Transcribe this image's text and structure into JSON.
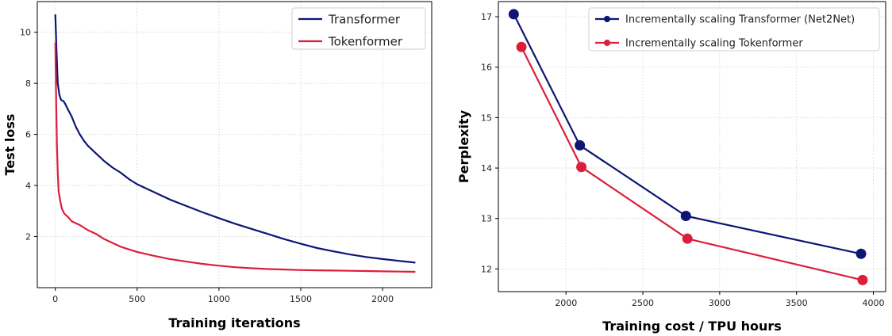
{
  "chart_data": [
    {
      "type": "line",
      "xlabel": "Training iterations",
      "ylabel": "Test loss",
      "xlim": [
        -110,
        2300
      ],
      "ylim": [
        0,
        11.2
      ],
      "xticks": [
        0,
        500,
        1000,
        1500,
        2000
      ],
      "yticks": [
        2,
        4,
        6,
        8,
        10
      ],
      "grid": true,
      "legend_position": "top-right",
      "series": [
        {
          "name": "Transformer",
          "color": "#0d1575",
          "points": [
            [
              0,
              10.7
            ],
            [
              8,
              9.2
            ],
            [
              15,
              8.0
            ],
            [
              25,
              7.55
            ],
            [
              35,
              7.35
            ],
            [
              50,
              7.3
            ],
            [
              60,
              7.2
            ],
            [
              75,
              7.0
            ],
            [
              100,
              6.7
            ],
            [
              125,
              6.3
            ],
            [
              150,
              6.0
            ],
            [
              175,
              5.75
            ],
            [
              200,
              5.55
            ],
            [
              250,
              5.25
            ],
            [
              300,
              4.95
            ],
            [
              350,
              4.7
            ],
            [
              400,
              4.5
            ],
            [
              450,
              4.25
            ],
            [
              500,
              4.05
            ],
            [
              600,
              3.75
            ],
            [
              700,
              3.45
            ],
            [
              800,
              3.2
            ],
            [
              900,
              2.95
            ],
            [
              1000,
              2.72
            ],
            [
              1100,
              2.5
            ],
            [
              1200,
              2.3
            ],
            [
              1300,
              2.1
            ],
            [
              1400,
              1.9
            ],
            [
              1500,
              1.72
            ],
            [
              1600,
              1.55
            ],
            [
              1700,
              1.42
            ],
            [
              1800,
              1.3
            ],
            [
              1900,
              1.2
            ],
            [
              2000,
              1.12
            ],
            [
              2100,
              1.05
            ],
            [
              2200,
              0.98
            ]
          ]
        },
        {
          "name": "Tokenformer",
          "color": "#dc1e3c",
          "points": [
            [
              0,
              9.6
            ],
            [
              5,
              7.5
            ],
            [
              10,
              5.6
            ],
            [
              15,
              4.5
            ],
            [
              20,
              3.8
            ],
            [
              30,
              3.4
            ],
            [
              40,
              3.1
            ],
            [
              55,
              2.9
            ],
            [
              80,
              2.75
            ],
            [
              100,
              2.6
            ],
            [
              150,
              2.45
            ],
            [
              200,
              2.25
            ],
            [
              250,
              2.1
            ],
            [
              300,
              1.9
            ],
            [
              350,
              1.75
            ],
            [
              400,
              1.6
            ],
            [
              450,
              1.5
            ],
            [
              500,
              1.4
            ],
            [
              600,
              1.25
            ],
            [
              700,
              1.12
            ],
            [
              800,
              1.02
            ],
            [
              900,
              0.93
            ],
            [
              1000,
              0.86
            ],
            [
              1100,
              0.8
            ],
            [
              1200,
              0.76
            ],
            [
              1300,
              0.73
            ],
            [
              1400,
              0.71
            ],
            [
              1500,
              0.69
            ],
            [
              1600,
              0.68
            ],
            [
              1700,
              0.67
            ],
            [
              1800,
              0.66
            ],
            [
              1900,
              0.65
            ],
            [
              2000,
              0.64
            ],
            [
              2100,
              0.63
            ],
            [
              2200,
              0.62
            ]
          ]
        }
      ]
    },
    {
      "type": "line",
      "xlabel": "Training cost / TPU hours",
      "ylabel": "Perplexity",
      "xlim": [
        1560,
        4080
      ],
      "ylim": [
        11.55,
        17.3
      ],
      "xticks": [
        2000,
        2500,
        3000,
        3500,
        4000
      ],
      "yticks": [
        12,
        13,
        14,
        15,
        16,
        17
      ],
      "grid": true,
      "legend_position": "top-right",
      "series": [
        {
          "name": "Incrementally scaling Transformer (Net2Net)",
          "color": "#0d1575",
          "points": [
            [
              1660,
              17.05
            ],
            [
              2090,
              14.45
            ],
            [
              2780,
              13.05
            ],
            [
              3920,
              12.3
            ]
          ]
        },
        {
          "name": "Incrementally scaling Tokenformer",
          "color": "#dc1e3c",
          "points": [
            [
              1710,
              16.4
            ],
            [
              2100,
              14.02
            ],
            [
              2790,
              12.6
            ],
            [
              3930,
              11.78
            ]
          ]
        }
      ]
    }
  ]
}
